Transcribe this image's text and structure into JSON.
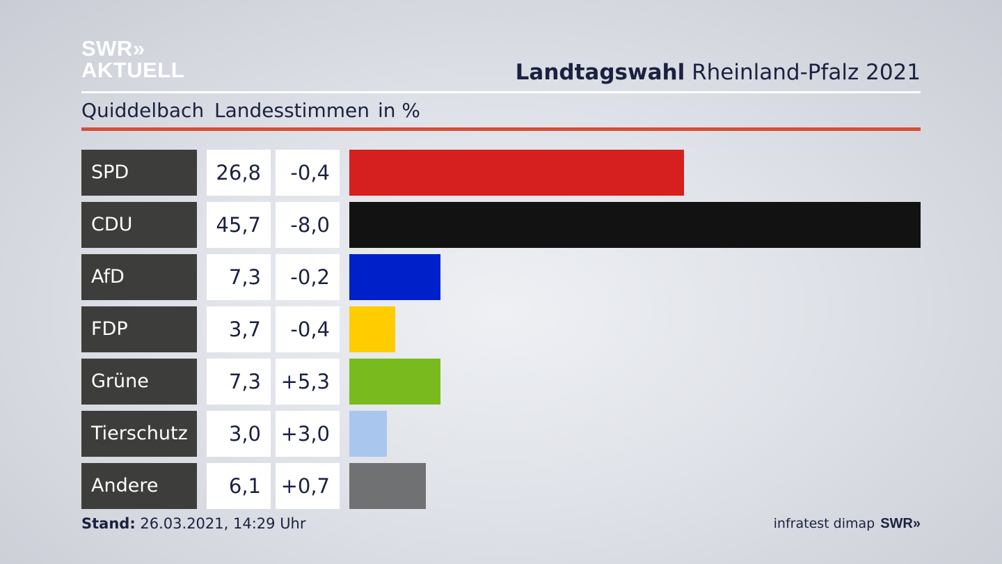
{
  "logo": {
    "line1": "SWR»",
    "line2": "AKTUELL"
  },
  "header": {
    "title_bold": "Landtagswahl",
    "title_rest": "Rheinland-Pfalz 2021",
    "location": "Quiddelbach",
    "measure": "Landesstimmen",
    "unit": "in %"
  },
  "chart_data": {
    "type": "bar",
    "title": "Landtagswahl Rheinland-Pfalz 2021",
    "subtitle": "Quiddelbach Landesstimmen in %",
    "categories": [
      "SPD",
      "CDU",
      "AfD",
      "FDP",
      "Grüne",
      "Tierschutz",
      "Andere"
    ],
    "values": [
      26.8,
      45.7,
      7.3,
      3.7,
      7.3,
      3.0,
      6.1
    ],
    "value_labels": [
      "26,8",
      "45,7",
      "7,3",
      "3,7",
      "7,3",
      "3,0",
      "6,1"
    ],
    "changes": [
      -0.4,
      -8.0,
      -0.2,
      -0.4,
      5.3,
      3.0,
      0.7
    ],
    "change_labels": [
      "-0,4",
      "-8,0",
      "-0,2",
      "-0,4",
      "+5,3",
      "+3,0",
      "+0,7"
    ],
    "colors": [
      "#d61f1f",
      "#121212",
      "#0021c9",
      "#ffcc00",
      "#79bb1e",
      "#a9c7ee",
      "#707173"
    ],
    "xlim": [
      0,
      45.7
    ],
    "orientation": "horizontal"
  },
  "footer": {
    "stand_label": "Stand:",
    "stand_value": "26.03.2021, 14:29 Uhr",
    "source": "infratest dimap",
    "brand": "SWR»"
  }
}
